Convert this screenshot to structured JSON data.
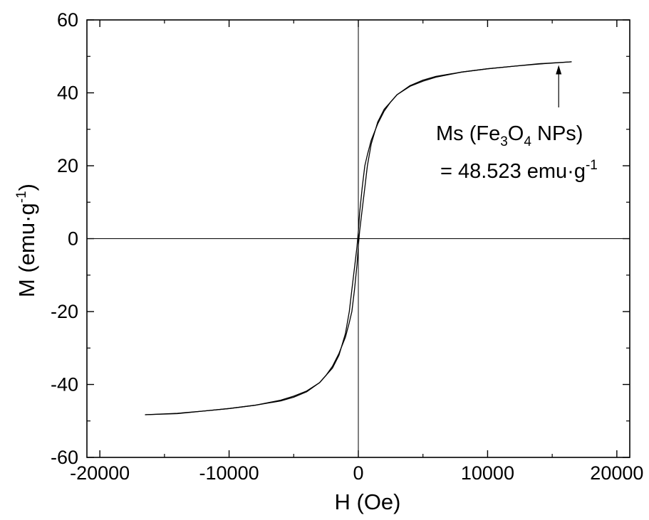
{
  "chart_data": {
    "type": "line",
    "xlabel": "H (Oe)",
    "ylabel_main": "M (emu·g",
    "ylabel_sup": "-1",
    "ylabel_close": ")",
    "xlim": [
      -21000,
      21000
    ],
    "ylim": [
      -60,
      60
    ],
    "x_ticks": [
      -20000,
      -10000,
      0,
      10000,
      20000
    ],
    "x_tick_labels": [
      "-20000",
      "-10000",
      "0",
      "10000",
      "20000"
    ],
    "y_ticks": [
      -60,
      -40,
      -20,
      0,
      20,
      40,
      60
    ],
    "y_tick_labels": [
      "-60",
      "-40",
      "-20",
      "0",
      "20",
      "40",
      "60"
    ],
    "grid": false,
    "zero_lines": true,
    "series": [
      {
        "values": [
          [
            16500,
            48.5
          ],
          [
            14000,
            48.0
          ],
          [
            12000,
            47.3
          ],
          [
            10000,
            46.6
          ],
          [
            8000,
            45.7
          ],
          [
            6000,
            44.5
          ],
          [
            5000,
            43.5
          ],
          [
            4000,
            42.0
          ],
          [
            3000,
            39.5
          ],
          [
            2500,
            37.5
          ],
          [
            2000,
            35.0
          ],
          [
            1500,
            31.5
          ],
          [
            1000,
            27.0
          ],
          [
            700,
            23.0
          ],
          [
            500,
            20.0
          ],
          [
            300,
            14.0
          ],
          [
            100,
            7.0
          ],
          [
            0,
            2.0
          ],
          [
            -100,
            -2.0
          ],
          [
            -300,
            -8.0
          ],
          [
            -500,
            -14.0
          ],
          [
            -700,
            -20.0
          ],
          [
            -1000,
            -26.0
          ],
          [
            -1500,
            -32.0
          ],
          [
            -2000,
            -35.5
          ],
          [
            -2500,
            -37.5
          ],
          [
            -3000,
            -39.5
          ],
          [
            -4000,
            -41.8
          ],
          [
            -5000,
            -43.2
          ],
          [
            -6000,
            -44.3
          ],
          [
            -8000,
            -45.7
          ],
          [
            -10000,
            -46.6
          ],
          [
            -12000,
            -47.3
          ],
          [
            -14000,
            -47.9
          ],
          [
            -16500,
            -48.3
          ]
        ]
      },
      {
        "values": [
          [
            -16500,
            -48.3
          ],
          [
            -14000,
            -48.0
          ],
          [
            -12000,
            -47.3
          ],
          [
            -10000,
            -46.6
          ],
          [
            -8000,
            -45.7
          ],
          [
            -6000,
            -44.5
          ],
          [
            -5000,
            -43.5
          ],
          [
            -4000,
            -42.0
          ],
          [
            -3000,
            -39.5
          ],
          [
            -2500,
            -37.5
          ],
          [
            -2000,
            -35.0
          ],
          [
            -1500,
            -31.5
          ],
          [
            -1000,
            -27.0
          ],
          [
            -700,
            -23.0
          ],
          [
            -500,
            -20.0
          ],
          [
            -300,
            -14.0
          ],
          [
            -100,
            -7.0
          ],
          [
            0,
            -2.0
          ],
          [
            100,
            2.0
          ],
          [
            300,
            8.0
          ],
          [
            500,
            14.0
          ],
          [
            700,
            20.0
          ],
          [
            1000,
            26.0
          ],
          [
            1500,
            32.0
          ],
          [
            2000,
            35.5
          ],
          [
            2500,
            37.5
          ],
          [
            3000,
            39.5
          ],
          [
            4000,
            41.8
          ],
          [
            5000,
            43.2
          ],
          [
            6000,
            44.3
          ],
          [
            8000,
            45.7
          ],
          [
            10000,
            46.6
          ],
          [
            12000,
            47.3
          ],
          [
            14000,
            47.9
          ],
          [
            16500,
            48.5
          ]
        ]
      }
    ],
    "annotation": {
      "line1_pre": "Ms (Fe",
      "line1_sub1": "3",
      "line1_mid": "O",
      "line1_sub2": "4",
      "line1_post": " NPs)",
      "line2_main": "= 48.523 emu·g",
      "line2_sup": "-1",
      "arrow_target": [
        15500,
        48.0
      ],
      "arrow_tail": [
        15500,
        36.0
      ]
    },
    "colors": {
      "line": "#000000",
      "axis": "#000000",
      "background": "#ffffff"
    }
  }
}
